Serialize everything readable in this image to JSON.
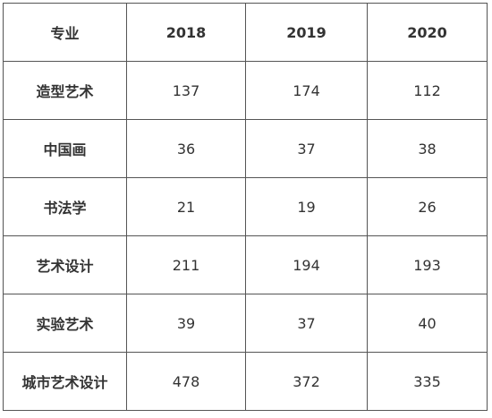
{
  "table": {
    "headers": [
      "专业",
      "2018",
      "2019",
      "2020"
    ],
    "rows": [
      {
        "major": "造型艺术",
        "values": [
          "137",
          "174",
          "112"
        ]
      },
      {
        "major": "中国画",
        "values": [
          "36",
          "37",
          "38"
        ]
      },
      {
        "major": "书法学",
        "values": [
          "21",
          "19",
          "26"
        ]
      },
      {
        "major": "艺术设计",
        "values": [
          "211",
          "194",
          "193"
        ]
      },
      {
        "major": "实验艺术",
        "values": [
          "39",
          "37",
          "40"
        ]
      },
      {
        "major": "城市艺术设计",
        "values": [
          "478",
          "372",
          "335"
        ]
      }
    ]
  }
}
